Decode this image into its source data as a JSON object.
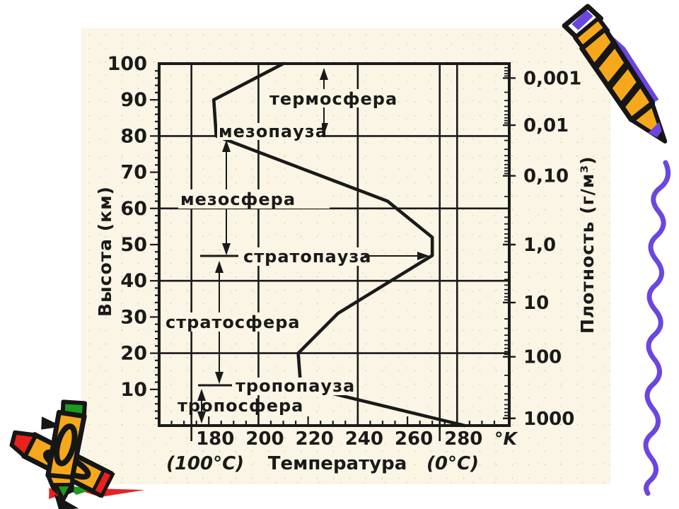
{
  "page": {
    "background": "#ffffff",
    "panel_background": "#FAF5E4"
  },
  "chart_data": {
    "type": "line",
    "title": "",
    "x_axis": {
      "label": "Температура",
      "unit": "°K",
      "range_k": [
        160,
        301
      ],
      "tick_labels_k": [
        180,
        200,
        220,
        240,
        260,
        280
      ],
      "minor_tick_step_k": 5,
      "gridlines_k": [
        173,
        200,
        240,
        273,
        280
      ],
      "celsius_ref_k": {
        "left": 173,
        "right": 273
      },
      "sub_labels": {
        "left": "(100°C)",
        "center": "Температура",
        "right": "(0°C)"
      }
    },
    "y_axis_left": {
      "label": "Высота (км)",
      "range_km": [
        0,
        100
      ],
      "tick_labels_km": [
        100,
        90,
        80,
        70,
        60,
        50,
        40,
        30,
        20,
        10
      ],
      "minor_tick_step_km": 2,
      "gridlines_km": [
        20,
        40,
        60,
        80
      ]
    },
    "y_axis_right": {
      "label": "Плотность (г/м³)",
      "scale": "log",
      "ticks": [
        {
          "label": "0,001",
          "alt_km": 96
        },
        {
          "label": "0,01",
          "alt_km": 83
        },
        {
          "label": "0,10",
          "alt_km": 69
        },
        {
          "label": "1,0",
          "alt_km": 50
        },
        {
          "label": "10",
          "alt_km": 34
        },
        {
          "label": "100",
          "alt_km": 19
        },
        {
          "label": "1000",
          "alt_km": 2
        }
      ]
    },
    "series": [
      {
        "name": "temperature-profile",
        "points": [
          {
            "k": 283,
            "km": 0
          },
          {
            "k": 217,
            "km": 11
          },
          {
            "k": 216,
            "km": 20
          },
          {
            "k": 232,
            "km": 31
          },
          {
            "k": 270,
            "km": 47
          },
          {
            "k": 270,
            "km": 52
          },
          {
            "k": 252,
            "km": 62
          },
          {
            "k": 183,
            "km": 80
          },
          {
            "k": 182,
            "km": 90
          },
          {
            "k": 210,
            "km": 100
          }
        ]
      }
    ],
    "annotations": {
      "thermosphere": "термосфера",
      "mesopause": "мезопауза",
      "mesosphere": "мезосфера",
      "stratopause": "стратопауза",
      "stratosphere": "стратосфера",
      "tropopause": "тропопауза",
      "troposphere": "тропосфера"
    }
  },
  "decorations": {
    "icons": [
      "pencil-icon",
      "crayons-icon",
      "scribble-icon"
    ],
    "pencil_orange": "#F5A81B",
    "accent_purple": "#6B46E0",
    "crayon_red": "#E8211D",
    "crayon_green": "#1F9A20",
    "ink": "#161616"
  }
}
